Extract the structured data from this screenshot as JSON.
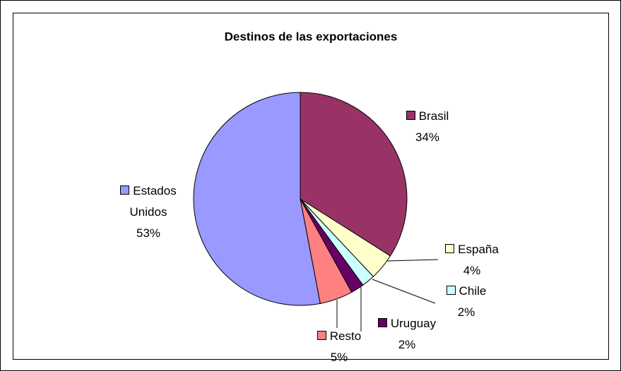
{
  "chart_data": {
    "type": "pie",
    "title": "Destinos de las exportaciones",
    "categories": [
      "Brasil",
      "España",
      "Chile",
      "Uruguay",
      "Resto",
      "Estados Unidos"
    ],
    "values": [
      34,
      4,
      2,
      2,
      5,
      53
    ],
    "value_labels": [
      "34%",
      "4%",
      "2%",
      "2%",
      "5%",
      "53%"
    ],
    "colors": [
      "#993366",
      "#ffffcc",
      "#ccffff",
      "#660066",
      "#ff8080",
      "#9999ff"
    ]
  }
}
